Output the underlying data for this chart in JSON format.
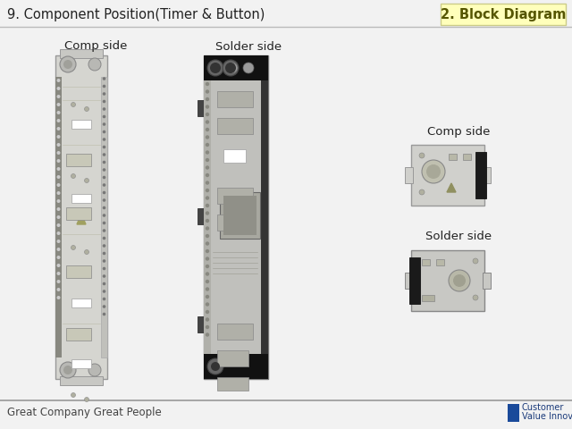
{
  "title_left": "9. Component Position(Timer & Button)",
  "title_right": "2. Block Diagram",
  "title_right_bg": "#ffffcc",
  "bg_color": "#f0f0f0",
  "header_line_color": "#aaaaaa",
  "footer_line_color": "#999999",
  "footer_text_left": "Great Company Great People",
  "comp_side_label1": "Comp side",
  "solder_side_label1": "Solder side",
  "comp_side_label2": "Comp side",
  "solder_side_label2": "Solder side"
}
